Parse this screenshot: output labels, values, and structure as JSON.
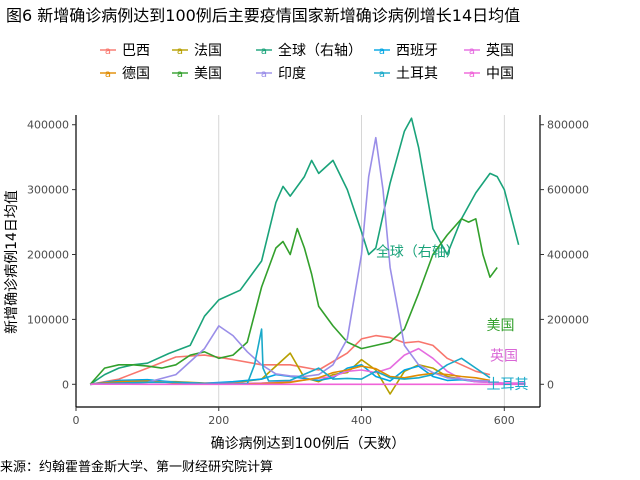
{
  "title": "图6 新增确诊病例达到100例后主要疫情国家新增确诊病例增长14日均值",
  "source": "来源：约翰霍普金斯大学、第一财经研究院计算",
  "chart_data": {
    "type": "line",
    "xlabel": "确诊病例达到100例后（天数）",
    "ylabel": "新增确诊病例14日均值",
    "xlim": [
      0,
      650
    ],
    "ylim": [
      -35000,
      415000
    ],
    "y2lim": [
      -70000,
      830000
    ],
    "x_ticks": [
      0,
      200,
      400,
      600
    ],
    "y_ticks": [
      0,
      100000,
      200000,
      300000,
      400000
    ],
    "y2_ticks": [
      0,
      200000,
      400000,
      600000,
      800000
    ],
    "grid": true,
    "legend_position": "top",
    "annotations": [
      {
        "text": "全球（右轴）",
        "x": 420,
        "y": 197000,
        "color": "#1aa37a"
      },
      {
        "text": "美国",
        "x": 575,
        "y": 84000,
        "color": "#33a02c"
      },
      {
        "text": "英国",
        "x": 580,
        "y": 37000,
        "color": "#d966d6"
      },
      {
        "text": "土耳其",
        "x": 575,
        "y": -7000,
        "color": "#19a9c9"
      }
    ],
    "series": [
      {
        "name": "巴西",
        "color": "#f8766d",
        "axis": "left",
        "x": [
          20,
          60,
          100,
          140,
          180,
          220,
          260,
          300,
          340,
          380,
          400,
          420,
          440,
          460,
          480,
          500,
          520,
          540,
          560,
          580
        ],
        "y": [
          0,
          8000,
          25000,
          42000,
          45000,
          38000,
          30000,
          30000,
          22000,
          48000,
          70000,
          75000,
          72000,
          64000,
          66000,
          60000,
          40000,
          30000,
          20000,
          15000
        ]
      },
      {
        "name": "法国",
        "color": "#b79f00",
        "axis": "left",
        "x": [
          20,
          60,
          100,
          140,
          180,
          220,
          260,
          300,
          320,
          340,
          360,
          380,
          400,
          420,
          440,
          460,
          480,
          500,
          520,
          540,
          560,
          580
        ],
        "y": [
          0,
          2000,
          4000,
          4000,
          2000,
          2000,
          8000,
          48000,
          10000,
          4000,
          15000,
          18000,
          38000,
          22000,
          -15000,
          20000,
          30000,
          25000,
          12000,
          8000,
          5000,
          3000
        ]
      },
      {
        "name": "全球（右轴）",
        "color": "#1aa37a",
        "axis": "right",
        "x": [
          20,
          40,
          60,
          80,
          100,
          130,
          160,
          180,
          200,
          230,
          260,
          280,
          290,
          300,
          320,
          330,
          340,
          360,
          380,
          400,
          410,
          420,
          440,
          460,
          470,
          480,
          500,
          520,
          540,
          560,
          580,
          590,
          600,
          620
        ],
        "y": [
          0,
          30000,
          50000,
          60000,
          65000,
          95000,
          120000,
          210000,
          260000,
          290000,
          380000,
          560000,
          610000,
          580000,
          640000,
          690000,
          650000,
          690000,
          600000,
          470000,
          400000,
          420000,
          620000,
          780000,
          820000,
          730000,
          480000,
          400000,
          510000,
          590000,
          650000,
          640000,
          600000,
          430000
        ]
      },
      {
        "name": "西班牙",
        "color": "#00a5e3",
        "axis": "left",
        "x": [
          20,
          60,
          100,
          140,
          180,
          220,
          260,
          280,
          300,
          340,
          360,
          380,
          400,
          420,
          440,
          460,
          480,
          500,
          520,
          540,
          560,
          580
        ],
        "y": [
          0,
          6000,
          7000,
          3000,
          1500,
          4000,
          8000,
          15000,
          12000,
          6000,
          10000,
          25000,
          30000,
          12000,
          5000,
          22000,
          28000,
          12000,
          6000,
          7000,
          4000,
          3000
        ]
      },
      {
        "name": "英国",
        "color": "#e56ce0",
        "axis": "left",
        "x": [
          20,
          60,
          100,
          140,
          180,
          220,
          260,
          300,
          330,
          360,
          380,
          400,
          420,
          440,
          460,
          480,
          500,
          520,
          540,
          560,
          580,
          600,
          630
        ],
        "y": [
          0,
          3000,
          4000,
          3000,
          1000,
          1000,
          2000,
          4000,
          8000,
          12000,
          20000,
          22000,
          18000,
          25000,
          45000,
          55000,
          40000,
          20000,
          8000,
          4000,
          3000,
          2000,
          2000
        ]
      },
      {
        "name": "德国",
        "color": "#e08b00",
        "axis": "left",
        "x": [
          20,
          60,
          100,
          140,
          180,
          220,
          260,
          300,
          340,
          360,
          380,
          400,
          420,
          440,
          460,
          480,
          500,
          520,
          540,
          560,
          580
        ],
        "y": [
          0,
          4000,
          5000,
          2000,
          600,
          500,
          1000,
          3000,
          10000,
          18000,
          22000,
          28000,
          24000,
          12000,
          10000,
          14000,
          17000,
          15000,
          12000,
          10000,
          6000
        ]
      },
      {
        "name": "美国",
        "color": "#33a02c",
        "axis": "left",
        "x": [
          20,
          40,
          60,
          80,
          100,
          120,
          140,
          160,
          180,
          200,
          220,
          240,
          260,
          280,
          290,
          300,
          310,
          320,
          330,
          340,
          360,
          380,
          400,
          420,
          440,
          460,
          480,
          500,
          520,
          540,
          550,
          560,
          570,
          580,
          590
        ],
        "y": [
          0,
          25000,
          30000,
          30000,
          28000,
          25000,
          30000,
          45000,
          50000,
          40000,
          45000,
          65000,
          150000,
          210000,
          220000,
          200000,
          240000,
          210000,
          170000,
          120000,
          90000,
          65000,
          55000,
          60000,
          65000,
          85000,
          140000,
          200000,
          230000,
          255000,
          250000,
          255000,
          200000,
          165000,
          180000
        ]
      },
      {
        "name": "印度",
        "color": "#9a8ee8",
        "axis": "left",
        "x": [
          20,
          60,
          100,
          140,
          180,
          200,
          220,
          240,
          260,
          280,
          300,
          320,
          340,
          360,
          380,
          400,
          410,
          420,
          430,
          440,
          460,
          480,
          500,
          520,
          540,
          560,
          580
        ],
        "y": [
          0,
          1000,
          3000,
          15000,
          55000,
          90000,
          75000,
          50000,
          30000,
          16000,
          13000,
          12000,
          15000,
          30000,
          70000,
          200000,
          320000,
          380000,
          300000,
          180000,
          60000,
          30000,
          18000,
          10000,
          8000,
          6000,
          5000
        ]
      },
      {
        "name": "土耳其",
        "color": "#19a9c9",
        "axis": "left",
        "x": [
          20,
          60,
          100,
          140,
          180,
          220,
          240,
          250,
          260,
          262,
          270,
          300,
          340,
          360,
          380,
          400,
          420,
          440,
          460,
          480,
          500,
          520,
          540,
          560,
          580
        ],
        "y": [
          0,
          2000,
          3000,
          3000,
          1000,
          500,
          1000,
          30000,
          85000,
          25000,
          5000,
          6000,
          25000,
          8000,
          9000,
          8000,
          20000,
          10000,
          8000,
          10000,
          15000,
          30000,
          40000,
          25000,
          10000
        ]
      },
      {
        "name": "中国",
        "color": "#f063d8",
        "axis": "left",
        "x": [
          20,
          60,
          100,
          200,
          300,
          400,
          500,
          600,
          630
        ],
        "y": [
          100,
          80,
          50,
          40,
          30,
          30,
          40,
          30,
          20
        ]
      }
    ]
  }
}
